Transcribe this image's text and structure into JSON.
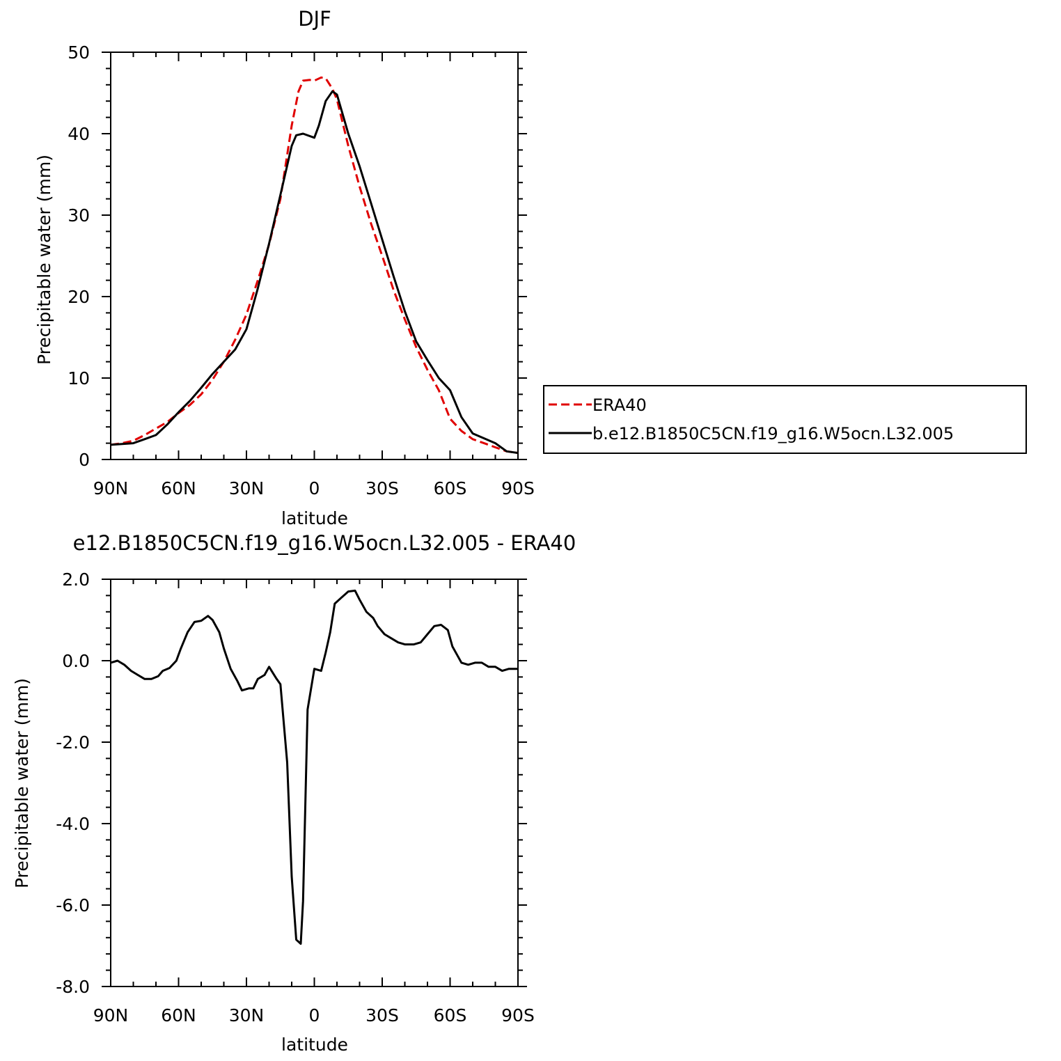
{
  "chart_data": [
    {
      "type": "line",
      "title": "DJF",
      "xlabel": "latitude",
      "ylabel": "Precipitable water (mm)",
      "xlim": [
        -90,
        90
      ],
      "ylim": [
        0,
        50
      ],
      "xticks": [
        -90,
        -60,
        -30,
        0,
        30,
        60,
        90
      ],
      "xtick_labels": [
        "90N",
        "60N",
        "30N",
        "0",
        "30S",
        "60S",
        "90S"
      ],
      "yticks": [
        0,
        10,
        20,
        30,
        40,
        50
      ],
      "ytick_labels": [
        "0",
        "10",
        "20",
        "30",
        "40",
        "50"
      ],
      "legend": "right",
      "series": [
        {
          "name": "ERA40",
          "color": "#e00000",
          "dash": "dashed",
          "x": [
            -90,
            -85,
            -80,
            -75,
            -70,
            -65,
            -60,
            -55,
            -50,
            -45,
            -40,
            -35,
            -30,
            -25,
            -20,
            -15,
            -10,
            -7,
            -5,
            -2,
            0,
            3,
            5,
            8,
            10,
            15,
            20,
            25,
            30,
            35,
            40,
            45,
            50,
            55,
            60,
            65,
            70,
            75,
            80,
            85,
            90
          ],
          "y": [
            1.8,
            2.0,
            2.3,
            3.0,
            3.8,
            4.6,
            5.7,
            6.7,
            8.0,
            9.8,
            12.0,
            14.7,
            17.8,
            22.0,
            26.4,
            32.0,
            41.0,
            45.2,
            46.5,
            46.6,
            46.5,
            46.9,
            46.8,
            45.5,
            44.2,
            38.5,
            33.5,
            29.0,
            25.0,
            20.8,
            17.2,
            13.8,
            11.0,
            8.5,
            5.0,
            3.5,
            2.5,
            2.0,
            1.5,
            1.0,
            0.8
          ]
        },
        {
          "name": "b.e12.B1850C5CN.f19_g16.W5ocn.L32.005",
          "color": "#000000",
          "dash": "solid",
          "x": [
            -90,
            -85,
            -80,
            -75,
            -70,
            -65,
            -60,
            -55,
            -50,
            -45,
            -40,
            -35,
            -30,
            -25,
            -20,
            -15,
            -10,
            -8,
            -5,
            0,
            2,
            5,
            8,
            10,
            15,
            20,
            25,
            30,
            35,
            40,
            45,
            50,
            55,
            60,
            65,
            70,
            75,
            80,
            85,
            90
          ],
          "y": [
            1.8,
            1.9,
            2.0,
            2.5,
            3.0,
            4.3,
            5.8,
            7.2,
            8.8,
            10.5,
            12.0,
            13.5,
            16.0,
            21.0,
            26.5,
            32.5,
            38.5,
            39.8,
            40.0,
            39.5,
            41.0,
            44.0,
            45.2,
            44.8,
            40.0,
            36.0,
            31.5,
            27.0,
            22.5,
            18.2,
            14.5,
            12.2,
            10.0,
            8.5,
            5.2,
            3.2,
            2.6,
            2.0,
            1.0,
            0.8
          ]
        }
      ]
    },
    {
      "type": "line",
      "title": "e12.B1850C5CN.f19_g16.W5ocn.L32.005 - ERA40",
      "xlabel": "latitude",
      "ylabel": "Precipitable water (mm)",
      "xlim": [
        -90,
        90
      ],
      "ylim": [
        -8,
        2
      ],
      "xticks": [
        -90,
        -60,
        -30,
        0,
        30,
        60,
        90
      ],
      "xtick_labels": [
        "90N",
        "60N",
        "30N",
        "0",
        "30S",
        "60S",
        "90S"
      ],
      "yticks": [
        -8,
        -6,
        -4,
        -2,
        0,
        2
      ],
      "ytick_labels": [
        "-8.0",
        "-6.0",
        "-4.0",
        "-2.0",
        "0.0",
        "2.0"
      ],
      "series": [
        {
          "color": "#000000",
          "dash": "solid",
          "x": [
            -90,
            -87,
            -84,
            -81,
            -78,
            -75,
            -72,
            -69,
            -67,
            -64,
            -61,
            -59,
            -56,
            -53,
            -50,
            -47,
            -45,
            -42,
            -40,
            -37,
            -34,
            -32,
            -29,
            -27,
            -25,
            -22,
            -20,
            -17,
            -15,
            -12,
            -10,
            -8,
            -6,
            -5,
            -3,
            0,
            3,
            5,
            7,
            9,
            12,
            15,
            18,
            20,
            23,
            26,
            28,
            31,
            34,
            37,
            40,
            44,
            47,
            50,
            53,
            56,
            59,
            61,
            63,
            65,
            68,
            71,
            74,
            77,
            80,
            83,
            86,
            88,
            90
          ],
          "y": [
            -0.05,
            0.0,
            -0.1,
            -0.25,
            -0.35,
            -0.45,
            -0.45,
            -0.38,
            -0.25,
            -0.18,
            0.0,
            0.3,
            0.7,
            0.95,
            0.98,
            1.1,
            1.0,
            0.7,
            0.3,
            -0.2,
            -0.5,
            -0.73,
            -0.68,
            -0.68,
            -0.45,
            -0.35,
            -0.15,
            -0.42,
            -0.58,
            -2.5,
            -5.3,
            -6.85,
            -6.95,
            -5.9,
            -1.2,
            -0.2,
            -0.25,
            0.2,
            0.7,
            1.4,
            1.55,
            1.7,
            1.72,
            1.5,
            1.2,
            1.05,
            0.85,
            0.65,
            0.55,
            0.45,
            0.4,
            0.4,
            0.45,
            0.65,
            0.85,
            0.88,
            0.75,
            0.35,
            0.15,
            -0.05,
            -0.1,
            -0.05,
            -0.05,
            -0.15,
            -0.15,
            -0.25,
            -0.2,
            -0.2,
            -0.2
          ]
        }
      ]
    }
  ]
}
